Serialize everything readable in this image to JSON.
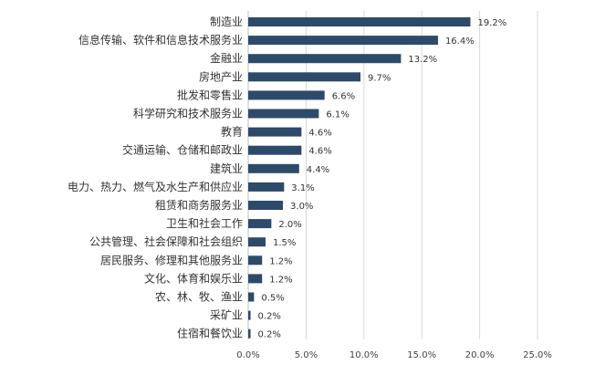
{
  "chart_data": {
    "type": "bar",
    "orientation": "horizontal",
    "categories": [
      "制造业",
      "信息传输、软件和信息技术服务业",
      "金融业",
      "房地产业",
      "批发和零售业",
      "科学研究和技术服务业",
      "教育",
      "交通运输、仓储和邮政业",
      "建筑业",
      "电力、热力、燃气及水生产和供应业",
      "租赁和商务服务业",
      "卫生和社会工作",
      "公共管理、社会保障和社会组织",
      "居民服务、修理和其他服务业",
      "文化、体育和娱乐业",
      "农、林、牧、渔业",
      "采矿业",
      "住宿和餐饮业"
    ],
    "values": [
      19.2,
      16.4,
      13.2,
      9.7,
      6.6,
      6.1,
      4.6,
      4.6,
      4.4,
      3.1,
      3.0,
      2.0,
      1.5,
      1.2,
      1.2,
      0.5,
      0.2,
      0.2
    ],
    "value_labels": [
      "19.2%",
      "16.4%",
      "13.2%",
      "9.7%",
      "6.6%",
      "6.1%",
      "4.6%",
      "4.6%",
      "4.4%",
      "3.1%",
      "3.0%",
      "2.0%",
      "1.5%",
      "1.2%",
      "1.2%",
      "0.5%",
      "0.2%",
      "0.2%"
    ],
    "xlim": [
      0,
      25
    ],
    "x_ticks": [
      0,
      5,
      10,
      15,
      20,
      25
    ],
    "x_tick_labels": [
      "0.0%",
      "5.0%",
      "10.0%",
      "15.0%",
      "20.0%",
      "25.0%"
    ],
    "grid": true,
    "bar_color": "#2e4a6b",
    "title": "",
    "xlabel": "",
    "ylabel": ""
  }
}
